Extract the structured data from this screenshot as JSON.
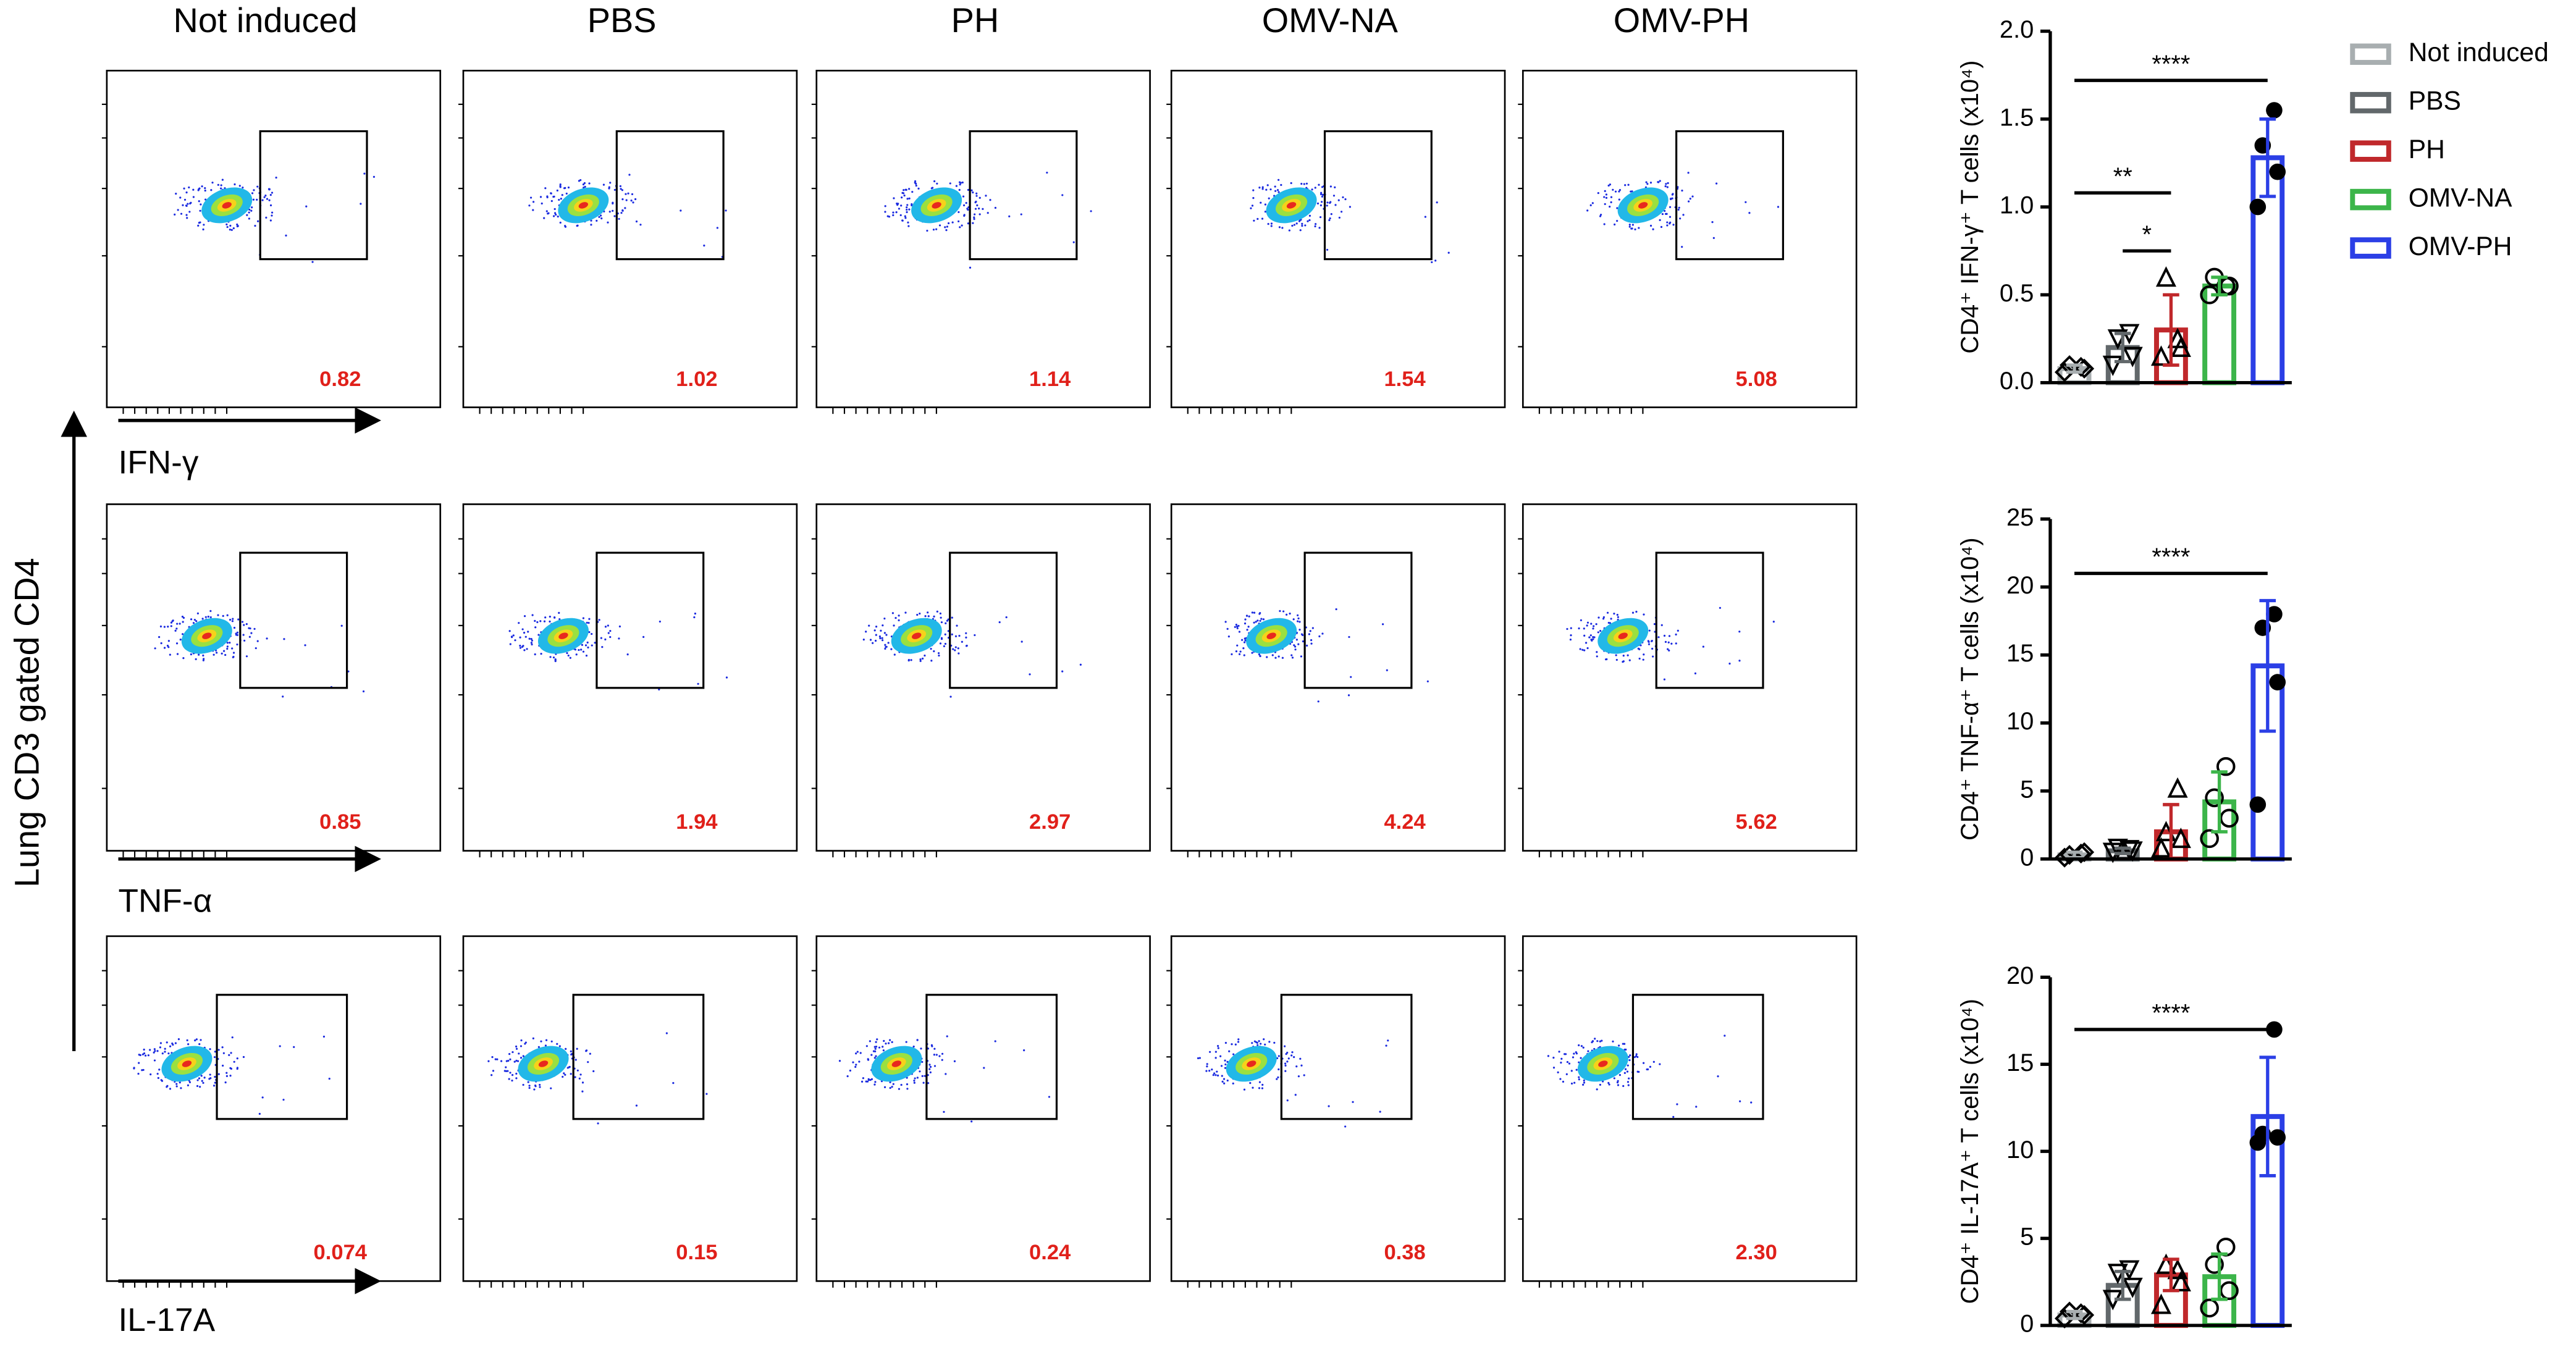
{
  "flow": {
    "y_axis_label": "Lung  CD3 gated CD4",
    "columns": [
      "Not induced",
      "PBS",
      "PH",
      "OMV-NA",
      "OMV-PH"
    ],
    "rows": [
      {
        "marker": "IFN-γ",
        "gate_values": [
          "0.82",
          "1.02",
          "1.14",
          "1.54",
          "5.08"
        ]
      },
      {
        "marker": "TNF-α",
        "gate_values": [
          "0.85",
          "1.94",
          "2.97",
          "4.24",
          "5.62"
        ]
      },
      {
        "marker": "IL-17A",
        "gate_values": [
          "0.074",
          "0.15",
          "0.24",
          "0.38",
          "2.30"
        ]
      }
    ]
  },
  "chart_data": [
    {
      "type": "bar",
      "ylabel": "CD4⁺ IFN-γ⁺ T cells (x10⁴)",
      "categories": [
        "Not induced",
        "PBS",
        "PH",
        "OMV-NA",
        "OMV-PH"
      ],
      "colors": [
        "#a8aeb0",
        "#62686b",
        "#c0282b",
        "#3cb54a",
        "#2b3fe6"
      ],
      "markers": [
        "diamond",
        "triangle-down",
        "triangle-up",
        "circle-open",
        "circle"
      ],
      "legend": true,
      "values": [
        0.08,
        0.2,
        0.3,
        0.55,
        1.28
      ],
      "errors": [
        0.02,
        0.08,
        0.2,
        0.05,
        0.22
      ],
      "points": [
        [
          0.06,
          0.08,
          0.1,
          0.09
        ],
        [
          0.1,
          0.15,
          0.25,
          0.28
        ],
        [
          0.15,
          0.2,
          0.6,
          0.25
        ],
        [
          0.5,
          0.55,
          0.6,
          0.55
        ],
        [
          1.0,
          1.2,
          1.35,
          1.55
        ]
      ],
      "ylim": [
        0,
        2
      ],
      "yticks": [
        {
          "value": 0,
          "label": "0.0"
        },
        {
          "value": 0.5,
          "label": "0.5"
        },
        {
          "value": 1,
          "label": "1.0"
        },
        {
          "value": 1.5,
          "label": "1.5"
        },
        {
          "value": 2,
          "label": "2.0"
        }
      ],
      "significance": [
        {
          "text": "****",
          "from": "Not induced",
          "to": "OMV-PH",
          "y": 1.72
        },
        {
          "text": "**",
          "from": "Not induced",
          "to": "PH",
          "y": 1.08
        },
        {
          "text": "*",
          "from": "PBS",
          "to": "PH",
          "y": 0.75
        }
      ]
    },
    {
      "type": "bar",
      "ylabel": "CD4⁺ TNF-α⁺ T cells (x10⁴)",
      "categories": [
        "Not induced",
        "PBS",
        "PH",
        "OMV-NA",
        "OMV-PH"
      ],
      "colors": [
        "#a8aeb0",
        "#62686b",
        "#c0282b",
        "#3cb54a",
        "#2b3fe6"
      ],
      "markers": [
        "diamond",
        "triangle-down",
        "triangle-up",
        "circle-open",
        "circle"
      ],
      "values": [
        0.3,
        0.6,
        2.0,
        4.2,
        14.2
      ],
      "errors": [
        0.2,
        0.2,
        2.0,
        2.2,
        4.8
      ],
      "points": [
        [
          0.1,
          0.5,
          0.3,
          0.4
        ],
        [
          0.5,
          0.6,
          0.8,
          0.7
        ],
        [
          0.8,
          1.5,
          2.0,
          5.2
        ],
        [
          1.5,
          3.0,
          4.5,
          6.8
        ],
        [
          4.0,
          13,
          17,
          18
        ]
      ],
      "ylim": [
        0,
        25
      ],
      "yticks": [
        0,
        5,
        10,
        15,
        20,
        25
      ],
      "significance": [
        {
          "text": "****",
          "from": "Not induced",
          "to": "OMV-PH",
          "y": 21
        }
      ]
    },
    {
      "type": "bar",
      "ylabel": "CD4⁺ IL-17A⁺ T cells (x10⁴)",
      "categories": [
        "Not induced",
        "PBS",
        "PH",
        "OMV-NA",
        "OMV-PH"
      ],
      "colors": [
        "#a8aeb0",
        "#62686b",
        "#c0282b",
        "#3cb54a",
        "#2b3fe6"
      ],
      "markers": [
        "diamond",
        "triangle-down",
        "triangle-up",
        "circle-open",
        "circle"
      ],
      "values": [
        0.6,
        2.3,
        2.9,
        2.8,
        12.0
      ],
      "errors": [
        0.2,
        0.8,
        0.9,
        1.3,
        3.4
      ],
      "points": [
        [
          0.4,
          0.6,
          0.8,
          0.7
        ],
        [
          1.5,
          2.2,
          3.0,
          3.2
        ],
        [
          1.2,
          2.5,
          3.5,
          3.2
        ],
        [
          1.0,
          2.0,
          3.5,
          4.5
        ],
        [
          10.5,
          10.8,
          11,
          17
        ]
      ],
      "ylim": [
        0,
        20
      ],
      "yticks": [
        0,
        5,
        10,
        15,
        20
      ],
      "significance": [
        {
          "text": "****",
          "from": "Not induced",
          "to": "OMV-PH",
          "y": 17
        }
      ]
    }
  ]
}
